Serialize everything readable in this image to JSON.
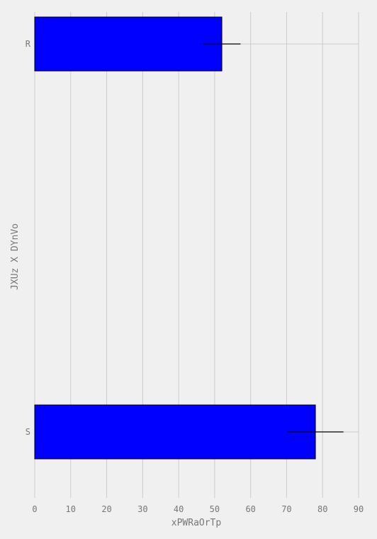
{
  "chart_data": {
    "type": "bar",
    "orientation": "horizontal",
    "categories": [
      "R",
      "S"
    ],
    "values": [
      52,
      78
    ],
    "errors": [
      5.2,
      7.8
    ],
    "xlabel": "xPWRaOrTp",
    "ylabel": "JXUz X DYnVo",
    "xlim": [
      0,
      90
    ],
    "xticks": [
      0,
      10,
      20,
      30,
      40,
      50,
      60,
      70,
      80,
      90
    ],
    "grid": true,
    "colors": {
      "bar": "#0000ff",
      "bar_edge": "#000000",
      "error_bar": "#000000",
      "grid": "#cbcbcb",
      "background": "#f0f0f0",
      "text": "#777777"
    }
  }
}
